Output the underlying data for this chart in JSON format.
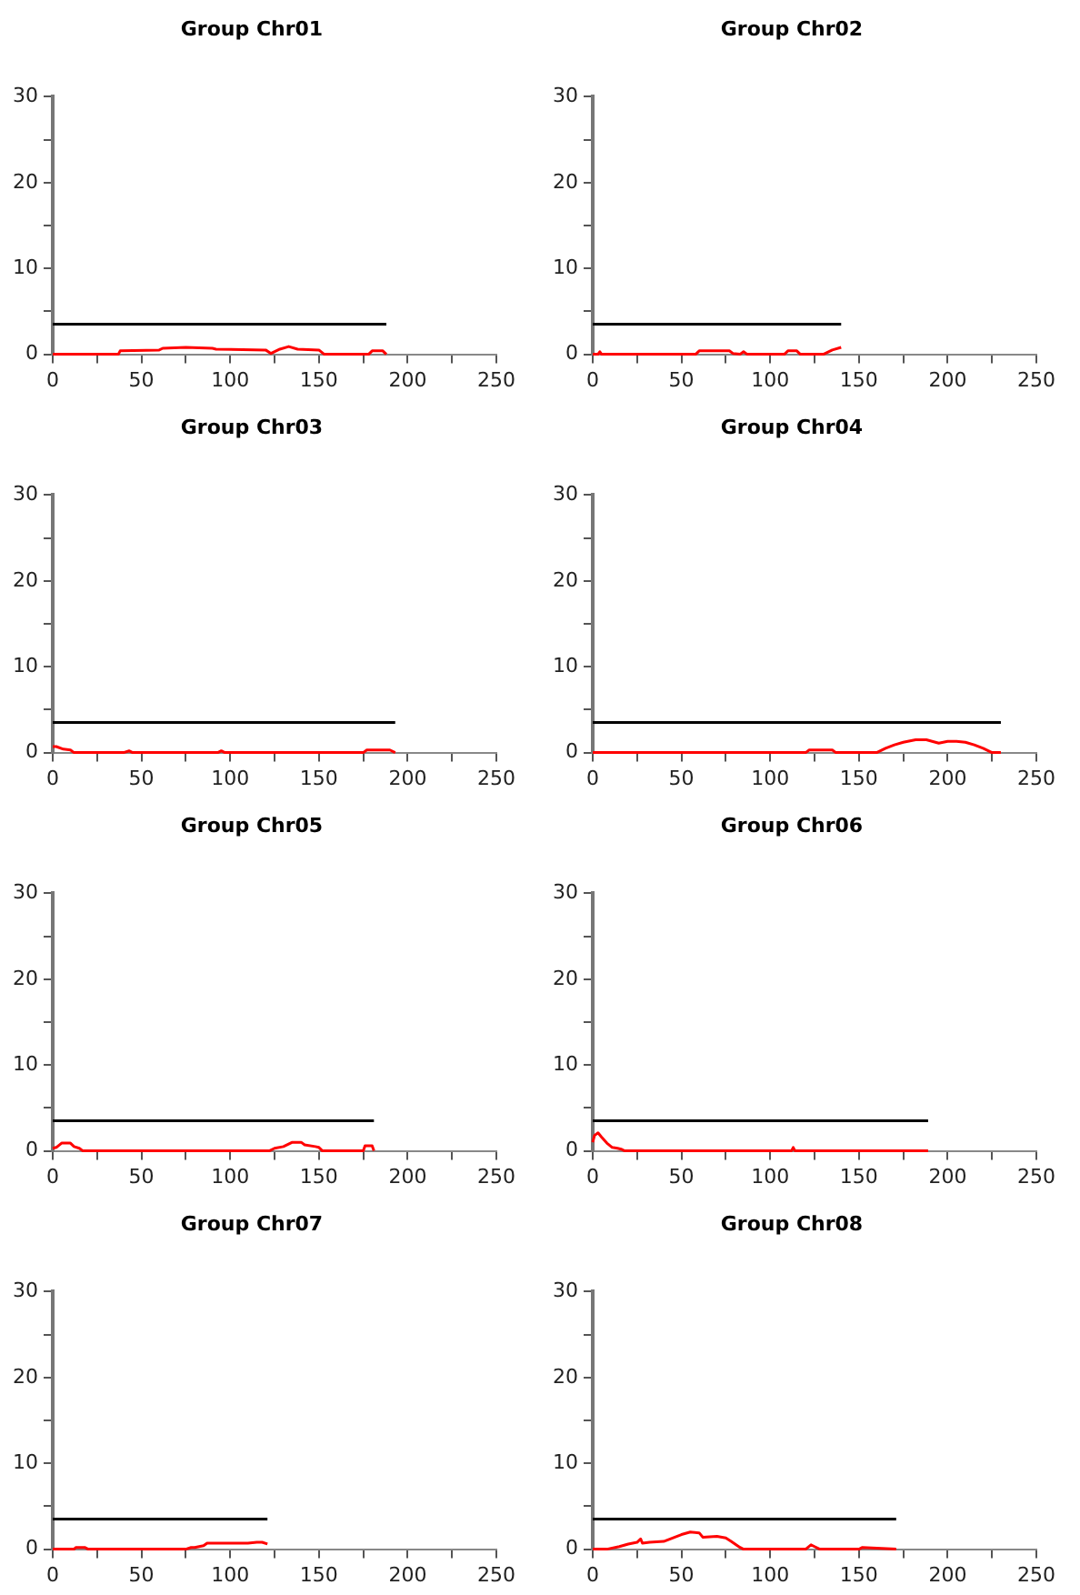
{
  "chart_data": [
    {
      "type": "line",
      "title": "Group Chr01",
      "xlim": [
        0,
        250
      ],
      "xticks": [
        0,
        {
          "value": 25,
          "label": null
        },
        50,
        {
          "value": 75,
          "label": null
        },
        100,
        {
          "value": 125,
          "label": null
        },
        150,
        {
          "value": 175,
          "label": null
        },
        200,
        {
          "value": 225,
          "label": null
        },
        250
      ],
      "ylim": [
        0,
        30
      ],
      "yticks": [
        0,
        {
          "value": 5,
          "label": null
        },
        10,
        {
          "value": 15,
          "label": null
        },
        20,
        {
          "value": 25,
          "label": null
        },
        30
      ],
      "grid": false,
      "legend": false,
      "marker": "none",
      "series": [
        {
          "color": "#ff0000",
          "x": [
            0,
            37,
            38,
            60,
            62,
            75,
            90,
            92,
            120,
            123,
            128,
            133,
            138,
            150,
            153,
            178,
            180,
            186,
            188
          ],
          "values": [
            0,
            0,
            0.4,
            0.5,
            0.7,
            0.8,
            0.7,
            0.6,
            0.5,
            0.1,
            0.6,
            0.9,
            0.6,
            0.5,
            0,
            0,
            0.4,
            0.4,
            0
          ]
        },
        {
          "color": "#000000",
          "x": [
            0,
            188
          ],
          "values": [
            3.5,
            3.5
          ]
        }
      ]
    },
    {
      "type": "line",
      "title": "Group Chr02",
      "xlim": [
        0,
        250
      ],
      "xticks": [
        0,
        {
          "value": 25,
          "label": null
        },
        50,
        {
          "value": 75,
          "label": null
        },
        100,
        {
          "value": 125,
          "label": null
        },
        150,
        {
          "value": 175,
          "label": null
        },
        200,
        {
          "value": 225,
          "label": null
        },
        250
      ],
      "ylim": [
        0,
        30
      ],
      "yticks": [
        0,
        {
          "value": 5,
          "label": null
        },
        10,
        {
          "value": 15,
          "label": null
        },
        20,
        {
          "value": 25,
          "label": null
        },
        30
      ],
      "grid": false,
      "legend": false,
      "marker": "none",
      "series": [
        {
          "color": "#ff0000",
          "x": [
            0,
            3,
            4,
            5,
            58,
            60,
            77,
            79,
            83,
            85,
            87,
            108,
            110,
            115,
            117,
            130,
            135,
            140
          ],
          "values": [
            0,
            0,
            0.3,
            0,
            0,
            0.4,
            0.4,
            0.1,
            0,
            0.3,
            0,
            0,
            0.4,
            0.4,
            0,
            0,
            0.5,
            0.8
          ]
        },
        {
          "color": "#000000",
          "x": [
            0,
            140
          ],
          "values": [
            3.5,
            3.5
          ]
        }
      ]
    },
    {
      "type": "line",
      "title": "Group Chr03",
      "xlim": [
        0,
        250
      ],
      "xticks": [
        0,
        {
          "value": 25,
          "label": null
        },
        50,
        {
          "value": 75,
          "label": null
        },
        100,
        {
          "value": 125,
          "label": null
        },
        150,
        {
          "value": 175,
          "label": null
        },
        200,
        {
          "value": 225,
          "label": null
        },
        250
      ],
      "ylim": [
        0,
        30
      ],
      "yticks": [
        0,
        {
          "value": 5,
          "label": null
        },
        10,
        {
          "value": 15,
          "label": null
        },
        20,
        {
          "value": 25,
          "label": null
        },
        30
      ],
      "grid": false,
      "legend": false,
      "marker": "none",
      "series": [
        {
          "color": "#ff0000",
          "x": [
            0,
            2,
            6,
            10,
            12,
            40,
            43,
            45,
            93,
            95,
            97,
            175,
            177,
            190,
            193
          ],
          "values": [
            0.7,
            0.7,
            0.4,
            0.3,
            0,
            0,
            0.2,
            0,
            0,
            0.2,
            0,
            0,
            0.3,
            0.3,
            0
          ]
        },
        {
          "color": "#000000",
          "x": [
            0,
            193
          ],
          "values": [
            3.5,
            3.5
          ]
        }
      ]
    },
    {
      "type": "line",
      "title": "Group Chr04",
      "xlim": [
        0,
        250
      ],
      "xticks": [
        0,
        {
          "value": 25,
          "label": null
        },
        50,
        {
          "value": 75,
          "label": null
        },
        100,
        {
          "value": 125,
          "label": null
        },
        150,
        {
          "value": 175,
          "label": null
        },
        200,
        {
          "value": 225,
          "label": null
        },
        250
      ],
      "ylim": [
        0,
        30
      ],
      "yticks": [
        0,
        {
          "value": 5,
          "label": null
        },
        10,
        {
          "value": 15,
          "label": null
        },
        20,
        {
          "value": 25,
          "label": null
        },
        30
      ],
      "grid": false,
      "legend": false,
      "marker": "none",
      "series": [
        {
          "color": "#ff0000",
          "x": [
            0,
            120,
            122,
            135,
            137,
            160,
            165,
            170,
            175,
            182,
            188,
            195,
            200,
            205,
            210,
            215,
            220,
            225,
            230
          ],
          "values": [
            0,
            0,
            0.3,
            0.3,
            0,
            0,
            0.5,
            0.9,
            1.2,
            1.5,
            1.5,
            1.1,
            1.3,
            1.3,
            1.2,
            0.9,
            0.5,
            0,
            0
          ]
        },
        {
          "color": "#000000",
          "x": [
            0,
            230
          ],
          "values": [
            3.5,
            3.5
          ]
        }
      ]
    },
    {
      "type": "line",
      "title": "Group Chr05",
      "xlim": [
        0,
        250
      ],
      "xticks": [
        0,
        {
          "value": 25,
          "label": null
        },
        50,
        {
          "value": 75,
          "label": null
        },
        100,
        {
          "value": 125,
          "label": null
        },
        150,
        {
          "value": 175,
          "label": null
        },
        200,
        {
          "value": 225,
          "label": null
        },
        250
      ],
      "ylim": [
        0,
        30
      ],
      "yticks": [
        0,
        {
          "value": 5,
          "label": null
        },
        10,
        {
          "value": 15,
          "label": null
        },
        20,
        {
          "value": 25,
          "label": null
        },
        30
      ],
      "grid": false,
      "legend": false,
      "marker": "none",
      "series": [
        {
          "color": "#ff0000",
          "x": [
            0,
            2,
            5,
            10,
            12,
            15,
            17,
            122,
            125,
            130,
            135,
            140,
            142,
            148,
            150,
            152,
            175,
            176,
            180,
            181
          ],
          "values": [
            0.3,
            0.4,
            0.9,
            0.9,
            0.5,
            0.3,
            0,
            0,
            0.3,
            0.5,
            1,
            1,
            0.7,
            0.5,
            0.4,
            0,
            0,
            0.6,
            0.6,
            0
          ]
        },
        {
          "color": "#000000",
          "x": [
            0,
            181
          ],
          "values": [
            3.5,
            3.5
          ]
        }
      ]
    },
    {
      "type": "line",
      "title": "Group Chr06",
      "xlim": [
        0,
        250
      ],
      "xticks": [
        0,
        {
          "value": 25,
          "label": null
        },
        50,
        {
          "value": 75,
          "label": null
        },
        100,
        {
          "value": 125,
          "label": null
        },
        150,
        {
          "value": 175,
          "label": null
        },
        200,
        {
          "value": 225,
          "label": null
        },
        250
      ],
      "ylim": [
        0,
        30
      ],
      "yticks": [
        0,
        {
          "value": 5,
          "label": null
        },
        10,
        {
          "value": 15,
          "label": null
        },
        20,
        {
          "value": 25,
          "label": null
        },
        30
      ],
      "grid": false,
      "legend": false,
      "marker": "none",
      "series": [
        {
          "color": "#ff0000",
          "x": [
            0,
            1,
            3,
            5,
            8,
            11,
            14,
            16,
            18,
            112,
            113,
            114,
            189
          ],
          "values": [
            1,
            1.8,
            2.1,
            1.6,
            0.9,
            0.4,
            0.3,
            0.2,
            0,
            0,
            0.4,
            0,
            0
          ]
        },
        {
          "color": "#000000",
          "x": [
            0,
            189
          ],
          "values": [
            3.5,
            3.5
          ]
        }
      ]
    },
    {
      "type": "line",
      "title": "Group Chr07",
      "xlim": [
        0,
        250
      ],
      "xticks": [
        0,
        {
          "value": 25,
          "label": null
        },
        50,
        {
          "value": 75,
          "label": null
        },
        100,
        {
          "value": 125,
          "label": null
        },
        150,
        {
          "value": 175,
          "label": null
        },
        200,
        {
          "value": 225,
          "label": null
        },
        250
      ],
      "ylim": [
        0,
        30
      ],
      "yticks": [
        0,
        {
          "value": 5,
          "label": null
        },
        10,
        {
          "value": 15,
          "label": null
        },
        20,
        {
          "value": 25,
          "label": null
        },
        30
      ],
      "grid": false,
      "legend": false,
      "marker": "none",
      "series": [
        {
          "color": "#ff0000",
          "x": [
            0,
            12,
            13,
            18,
            20,
            75,
            78,
            80,
            85,
            87,
            110,
            115,
            118,
            121
          ],
          "values": [
            0,
            0,
            0.2,
            0.2,
            0,
            0,
            0.2,
            0.2,
            0.4,
            0.7,
            0.7,
            0.8,
            0.8,
            0.6
          ]
        },
        {
          "color": "#000000",
          "x": [
            0,
            121
          ],
          "values": [
            3.5,
            3.5
          ]
        }
      ]
    },
    {
      "type": "line",
      "title": "Group Chr08",
      "xlim": [
        0,
        250
      ],
      "xticks": [
        0,
        {
          "value": 25,
          "label": null
        },
        50,
        {
          "value": 75,
          "label": null
        },
        100,
        {
          "value": 125,
          "label": null
        },
        150,
        {
          "value": 175,
          "label": null
        },
        200,
        {
          "value": 225,
          "label": null
        },
        250
      ],
      "ylim": [
        0,
        30
      ],
      "yticks": [
        0,
        {
          "value": 5,
          "label": null
        },
        10,
        {
          "value": 15,
          "label": null
        },
        20,
        {
          "value": 25,
          "label": null
        },
        30
      ],
      "grid": false,
      "legend": false,
      "marker": "none",
      "series": [
        {
          "color": "#ff0000",
          "x": [
            0,
            8,
            15,
            20,
            25,
            27,
            28,
            32,
            40,
            45,
            50,
            55,
            60,
            62,
            70,
            75,
            78,
            83,
            85,
            120,
            123,
            125,
            128,
            150,
            152,
            171
          ],
          "values": [
            0,
            0,
            0.3,
            0.6,
            0.8,
            1.2,
            0.7,
            0.8,
            0.9,
            1.3,
            1.7,
            2,
            1.9,
            1.4,
            1.5,
            1.3,
            0.9,
            0.2,
            0,
            0,
            0.5,
            0.3,
            0,
            0,
            0.2,
            0
          ]
        },
        {
          "color": "#000000",
          "x": [
            0,
            171
          ],
          "values": [
            3.5,
            3.5
          ]
        }
      ]
    }
  ]
}
